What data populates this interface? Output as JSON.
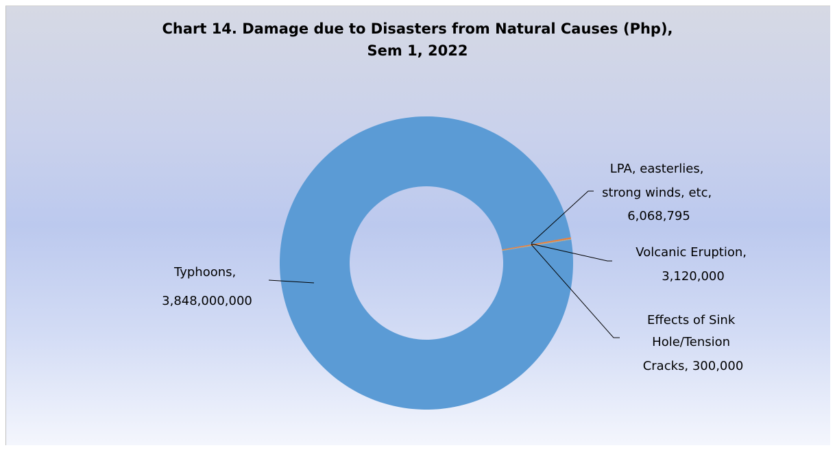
{
  "chart_data": {
    "type": "pie",
    "variant": "donut",
    "title_lines": [
      "Chart 14. Damage due to Disasters from Natural Causes (Php),",
      "Sem 1, 2022"
    ],
    "slices": [
      {
        "label_lines": [
          "Typhoons,",
          "3,848,000,000"
        ],
        "value": 3848000000,
        "color": "#5b9bd5"
      },
      {
        "label_lines": [
          "LPA, easterlies,",
          "strong winds, etc,",
          "6,068,795"
        ],
        "value": 6068795,
        "color": "#ed7d31"
      },
      {
        "label_lines": [
          "Volcanic Eruption,",
          "3,120,000"
        ],
        "value": 3120000,
        "color": "#a5a5a5"
      },
      {
        "label_lines": [
          "Effects of Sink",
          "Hole/Tension",
          "Cracks,  300,000"
        ],
        "value": 300000,
        "color": "#ffc000"
      }
    ],
    "legend": "none",
    "data_labels": "outside with leader lines"
  }
}
